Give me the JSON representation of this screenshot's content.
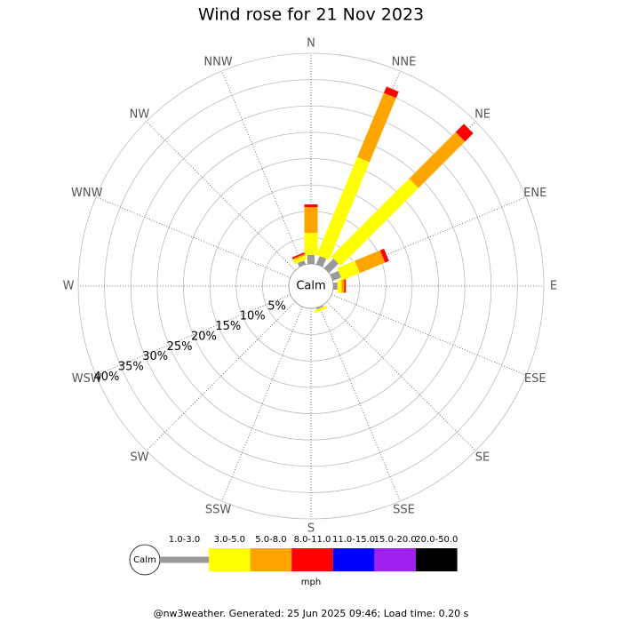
{
  "chart_data": {
    "type": "windrose",
    "title": "Wind rose for 21 Nov 2023",
    "categories": [
      "N",
      "NNE",
      "NE",
      "ENE",
      "E",
      "ESE",
      "SE",
      "SSE",
      "S",
      "SSW",
      "SW",
      "WSW",
      "W",
      "WNW",
      "NW",
      "NNW"
    ],
    "calm_label": "Calm",
    "rlim": [
      0,
      40
    ],
    "rticks": [
      {
        "value": 5,
        "label": "5%"
      },
      {
        "value": 10,
        "label": "10%"
      },
      {
        "value": 15,
        "label": "15%"
      },
      {
        "value": 20,
        "label": "20%"
      },
      {
        "value": 25,
        "label": "25%"
      },
      {
        "value": 30,
        "label": "30%"
      },
      {
        "value": 35,
        "label": "35%"
      },
      {
        "value": 40,
        "label": "40%"
      }
    ],
    "series": [
      {
        "name": "1.0-3.0",
        "color": "#999999",
        "values": [
          1.7,
          1.7,
          2.5,
          1.7,
          0.8,
          0,
          0,
          0.3,
          0,
          0,
          0,
          0,
          0,
          0,
          0,
          0.8
        ]
      },
      {
        "name": "3.0-5.0",
        "color": "#ffff00",
        "values": [
          4.2,
          20.1,
          20.9,
          3.6,
          0.8,
          0,
          0,
          0.5,
          0,
          0,
          0,
          0,
          0,
          0,
          0,
          0.8
        ]
      },
      {
        "name": "5.0-8.0",
        "color": "#ffa500",
        "values": [
          4.9,
          13.2,
          12.5,
          5.2,
          0.5,
          0,
          0,
          0,
          0,
          0,
          0,
          0,
          0,
          0,
          0,
          0.3
        ]
      },
      {
        "name": "8.0-11.0",
        "color": "#ff0000",
        "values": [
          0.5,
          1.3,
          2.2,
          0.8,
          0.3,
          0,
          0,
          0,
          0,
          0,
          0,
          0,
          0,
          0,
          0,
          0.3
        ]
      },
      {
        "name": "11.0-15.0",
        "color": "#0000ff",
        "values": [
          0,
          0,
          0,
          0,
          0,
          0,
          0,
          0,
          0,
          0,
          0,
          0,
          0,
          0,
          0,
          0
        ]
      },
      {
        "name": "15.0-20.0",
        "color": "#a020f0",
        "values": [
          0,
          0,
          0,
          0,
          0,
          0,
          0,
          0,
          0,
          0,
          0,
          0,
          0,
          0,
          0,
          0
        ]
      },
      {
        "name": "20.0-50.0",
        "color": "#000000",
        "values": [
          0,
          0,
          0,
          0,
          0,
          0,
          0,
          0,
          0,
          0,
          0,
          0,
          0,
          0,
          0,
          0
        ]
      }
    ],
    "unit_label": "mph",
    "footer": "@nw3weather. Generated: 25 Jun 2025 09:46; Load time: 0.20 s"
  }
}
